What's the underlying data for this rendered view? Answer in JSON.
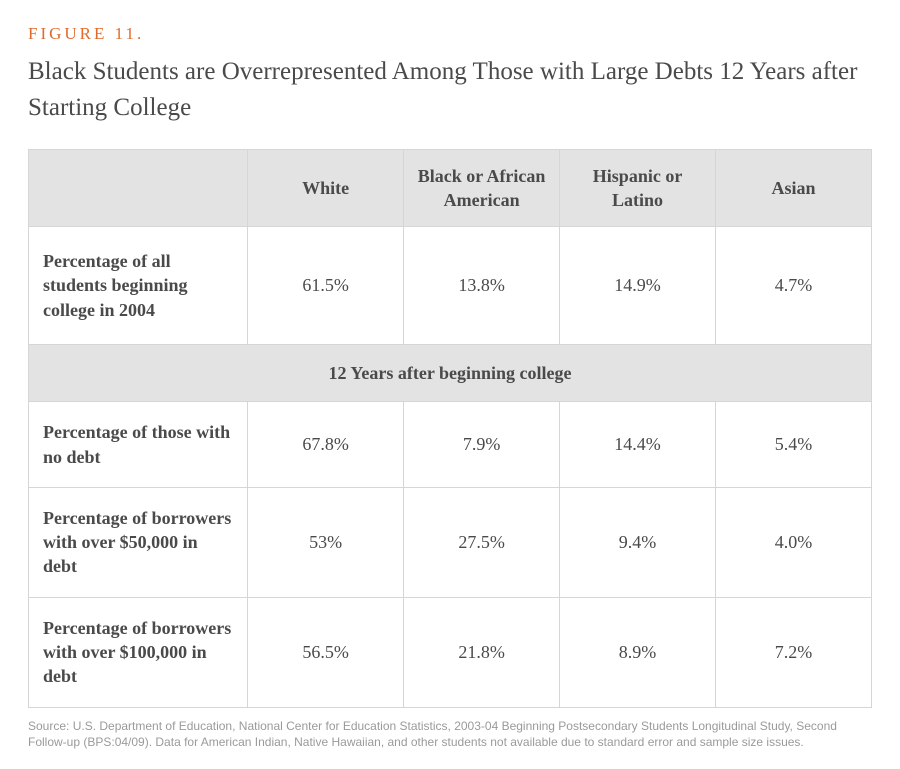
{
  "figure": {
    "label": "FIGURE 11.",
    "title": "Black Students are Overrepresented Among Those with Large Debts 12 Years after Starting College",
    "label_color": "#e06a2b",
    "title_color": "#4a4a4a",
    "label_fontsize": 17,
    "title_fontsize": 25
  },
  "table": {
    "type": "table",
    "header_bg": "#e3e3e3",
    "border_color": "#d6d6d6",
    "body_bg": "#ffffff",
    "cell_fontsize": 18,
    "columns": [
      "",
      "White",
      "Black or African American",
      "Hispanic or Latino",
      "Asian"
    ],
    "col_widths_pct": [
      26,
      18.5,
      18.5,
      18.5,
      18.5
    ],
    "rows_top": [
      {
        "label": "Percentage of all students beginning college in 2004",
        "values": [
          "61.5%",
          "13.8%",
          "14.9%",
          "4.7%"
        ]
      }
    ],
    "section_header": "12 Years after beginning college",
    "rows_bottom": [
      {
        "label": "Percentage of those with no debt",
        "values": [
          "67.8%",
          "7.9%",
          "14.4%",
          "5.4%"
        ]
      },
      {
        "label": "Percentage of borrowers with over $50,000 in debt",
        "values": [
          "53%",
          "27.5%",
          "9.4%",
          "4.0%"
        ]
      },
      {
        "label": "Percentage of borrowers with over $100,000 in debt",
        "values": [
          "56.5%",
          "21.8%",
          "8.9%",
          "7.2%"
        ]
      }
    ]
  },
  "source": {
    "text": "Source: U.S. Department of Education, National Center for Education Statistics, 2003-04 Beginning Postsecondary Students Longitudinal Study, Second Follow-up (BPS:04/09). Data for American Indian, Native Hawaiian, and other students not available due to standard error and sample size issues.",
    "fontsize": 12,
    "color": "#9a9a9a"
  }
}
